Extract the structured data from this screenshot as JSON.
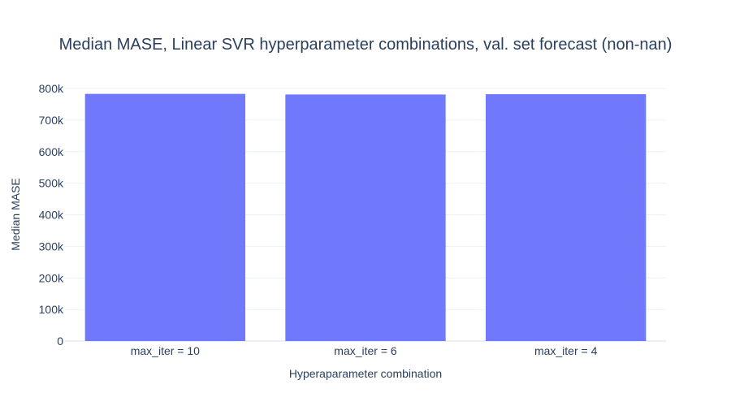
{
  "chart_data": {
    "type": "bar",
    "title": "Median MASE, Linear SVR hyperparameter combinations, val. set forecast (non-nan)",
    "xlabel": "Hyperaparameter combination",
    "ylabel": "Median MASE",
    "categories": [
      "max_iter = 10",
      "max_iter = 6",
      "max_iter = 4"
    ],
    "values": [
      783000,
      781000,
      782000
    ],
    "ylim": [
      0,
      800000
    ],
    "yticks": [
      0,
      100000,
      200000,
      300000,
      400000,
      500000,
      600000,
      700000,
      800000
    ],
    "ytick_labels": [
      "0",
      "100k",
      "200k",
      "300k",
      "400k",
      "500k",
      "600k",
      "700k",
      "800k"
    ],
    "grid": true,
    "legend": "none",
    "colors": {
      "bar": "#7079fb",
      "grid": "#ebf0f8",
      "text": "#2a3f5f",
      "background": "#ffffff"
    }
  }
}
